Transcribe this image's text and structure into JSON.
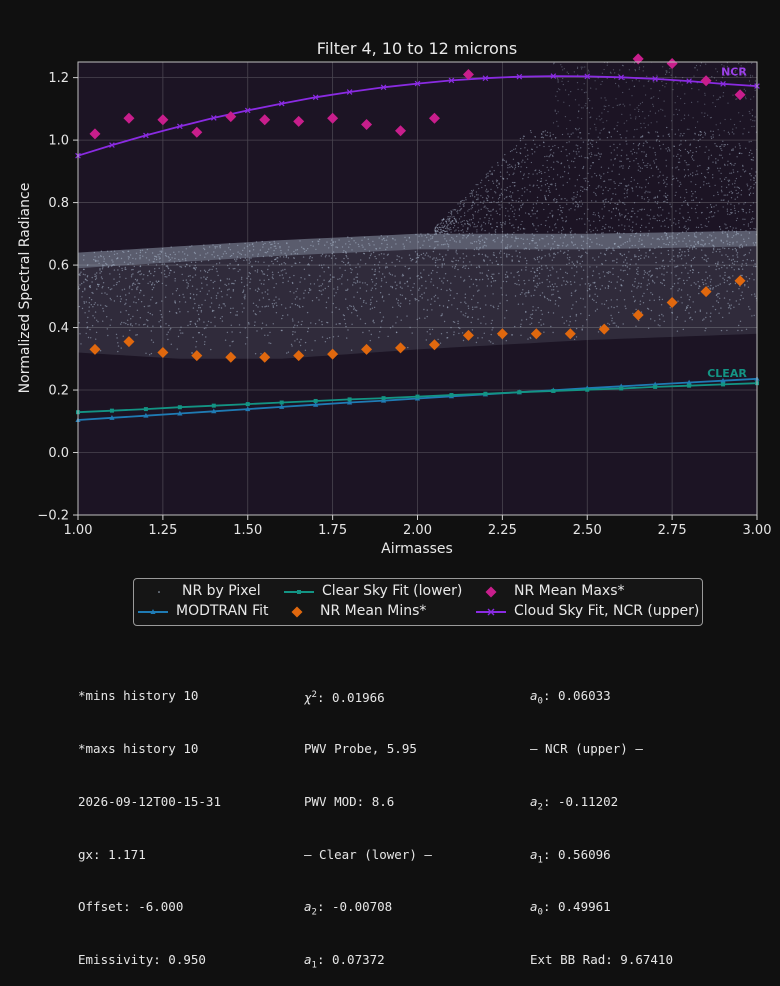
{
  "colors": {
    "background": "#101010",
    "plot_bg": "#1c1424",
    "pixels": "#aab8cc",
    "modtran": "#1f7bb4",
    "clear_fit": "#139484",
    "mean_mins": "#e0680e",
    "mean_maxs": "#c81e8c",
    "cloud_fit": "#8a2be2",
    "ncr_label": "#9b40e8",
    "clear_label": "#139484"
  },
  "chart_data": {
    "type": "scatter",
    "title": "Filter 4, 10 to 12 microns",
    "xlabel": "Airmasses",
    "ylabel": "Normalized Spectral Radiance",
    "xlim": [
      1.0,
      3.0
    ],
    "ylim": [
      -0.2,
      1.25
    ],
    "xticks": [
      "1.00",
      "1.25",
      "1.50",
      "1.75",
      "2.00",
      "2.25",
      "2.50",
      "2.75",
      "3.00"
    ],
    "yticks": [
      "−0.2",
      "0.0",
      "0.2",
      "0.4",
      "0.6",
      "0.8",
      "1.0",
      "1.2"
    ],
    "grid": true,
    "legend_placement": "below",
    "annotations": [
      {
        "text": "NCR",
        "x": 2.97,
        "y": 1.22
      },
      {
        "text": "CLEAR",
        "x": 2.97,
        "y": 0.255
      }
    ],
    "series": [
      {
        "name": "NR by Pixel",
        "type": "density",
        "band": {
          "x": [
            1.0,
            1.3,
            1.6,
            2.0,
            2.5,
            3.0
          ],
          "lower": [
            0.32,
            0.3,
            0.3,
            0.33,
            0.36,
            0.38
          ],
          "upper": [
            0.64,
            0.66,
            0.68,
            0.7,
            0.7,
            0.71
          ]
        },
        "cloud_region": {
          "x_start": 2.05,
          "y_top": 1.03
        }
      },
      {
        "name": "MODTRAN Fit",
        "type": "line",
        "x": [
          1.0,
          1.1,
          1.2,
          1.3,
          1.4,
          1.5,
          1.6,
          1.7,
          1.8,
          1.9,
          2.0,
          2.1,
          2.2,
          2.3,
          2.4,
          2.5,
          2.6,
          2.7,
          2.8,
          2.9,
          3.0
        ],
        "y": [
          0.104,
          0.111,
          0.118,
          0.125,
          0.132,
          0.139,
          0.146,
          0.153,
          0.16,
          0.166,
          0.173,
          0.18,
          0.186,
          0.193,
          0.199,
          0.206,
          0.212,
          0.218,
          0.224,
          0.23,
          0.236
        ]
      },
      {
        "name": "Clear Sky Fit (lower)",
        "type": "line",
        "x": [
          1.0,
          1.1,
          1.2,
          1.3,
          1.4,
          1.5,
          1.6,
          1.7,
          1.8,
          1.9,
          2.0,
          2.1,
          2.2,
          2.3,
          2.4,
          2.5,
          2.6,
          2.7,
          2.8,
          2.9,
          3.0
        ],
        "y": [
          0.129,
          0.134,
          0.139,
          0.145,
          0.15,
          0.155,
          0.16,
          0.165,
          0.17,
          0.174,
          0.179,
          0.184,
          0.188,
          0.193,
          0.197,
          0.201,
          0.205,
          0.21,
          0.214,
          0.218,
          0.222
        ]
      },
      {
        "name": "NR Mean Mins*",
        "type": "scatter",
        "x": [
          1.05,
          1.15,
          1.25,
          1.35,
          1.45,
          1.55,
          1.65,
          1.75,
          1.85,
          1.95,
          2.05,
          2.15,
          2.25,
          2.35,
          2.45,
          2.55,
          2.65,
          2.75,
          2.85,
          2.95
        ],
        "y": [
          0.33,
          0.355,
          0.32,
          0.31,
          0.305,
          0.305,
          0.31,
          0.315,
          0.33,
          0.335,
          0.345,
          0.375,
          0.38,
          0.38,
          0.38,
          0.395,
          0.44,
          0.48,
          0.515,
          0.55
        ]
      },
      {
        "name": "NR Mean Maxs*",
        "type": "scatter",
        "x": [
          1.05,
          1.15,
          1.25,
          1.35,
          1.45,
          1.55,
          1.65,
          1.75,
          1.85,
          1.95,
          2.05,
          2.15,
          2.65,
          2.75,
          2.85,
          2.95
        ],
        "y": [
          1.02,
          1.07,
          1.065,
          1.025,
          1.075,
          1.065,
          1.06,
          1.07,
          1.05,
          1.03,
          1.07,
          1.21,
          1.26,
          1.245,
          1.19,
          1.145
        ]
      },
      {
        "name": "Cloud Sky Fit, NCR (upper)",
        "type": "line",
        "x": [
          1.0,
          1.1,
          1.2,
          1.3,
          1.4,
          1.5,
          1.6,
          1.7,
          1.8,
          1.9,
          2.0,
          2.1,
          2.2,
          2.3,
          2.4,
          2.5,
          2.6,
          2.7,
          2.8,
          2.9,
          3.0
        ],
        "y": [
          0.95,
          0.984,
          1.015,
          1.044,
          1.071,
          1.095,
          1.117,
          1.137,
          1.154,
          1.169,
          1.181,
          1.191,
          1.198,
          1.203,
          1.205,
          1.204,
          1.201,
          1.196,
          1.189,
          1.18,
          1.173
        ]
      }
    ]
  },
  "legend": {
    "nr_pixel": "NR by Pixel",
    "modtran": "MODTRAN Fit",
    "clear_fit": "Clear Sky Fit (lower)",
    "mean_mins": "NR Mean Mins*",
    "mean_maxs": "NR Mean Maxs*",
    "cloud_fit": "Cloud Sky Fit, NCR (upper)"
  },
  "info": {
    "col1": [
      "*mins history 10",
      "*maxs history 10",
      "2026-09-12T00-15-31",
      "gx: 1.171",
      "Offset: -6.000",
      "Emissivity: 0.950"
    ],
    "col2": {
      "chi_value": ": 0.01966",
      "pwv_probe": "PWV Probe, 5.95",
      "pwv_mod": "PWV MOD: 8.6",
      "clear_header": "— Clear (lower) —",
      "a2_value": ": -0.00708",
      "a1_value": ": 0.07372"
    },
    "col3": {
      "a0_value": ": 0.06033",
      "ncr_header": "— NCR (upper) —",
      "a2_value": ": -0.11202",
      "a1_value": ": 0.56096",
      "a0b_value": ": 0.49961",
      "ext_bb": "Ext BB Rad: 9.67410"
    }
  }
}
